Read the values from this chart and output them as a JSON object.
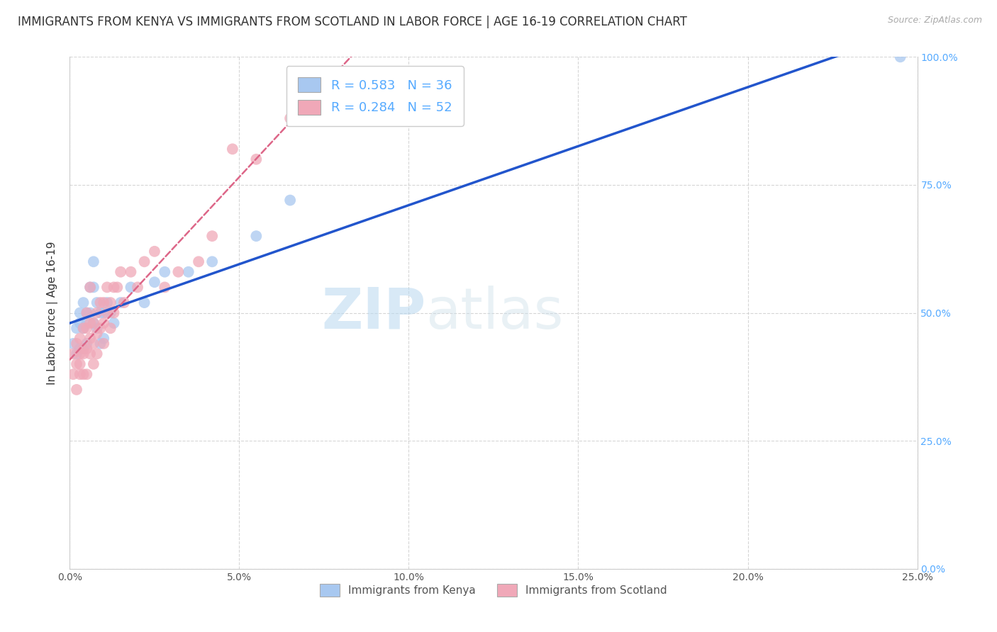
{
  "title": "IMMIGRANTS FROM KENYA VS IMMIGRANTS FROM SCOTLAND IN LABOR FORCE | AGE 16-19 CORRELATION CHART",
  "source": "Source: ZipAtlas.com",
  "ylabel": "In Labor Force | Age 16-19",
  "kenya_R": 0.583,
  "kenya_N": 36,
  "scotland_R": 0.284,
  "scotland_N": 52,
  "kenya_color": "#a8c8f0",
  "scotland_color": "#f0a8b8",
  "kenya_line_color": "#2255cc",
  "scotland_line_color": "#dd6688",
  "background_color": "#ffffff",
  "grid_color": "#cccccc",
  "xlim": [
    0.0,
    0.25
  ],
  "ylim": [
    0.0,
    1.0
  ],
  "xticks": [
    0.0,
    0.05,
    0.1,
    0.15,
    0.2,
    0.25
  ],
  "xticklabels": [
    "0.0%",
    "5.0%",
    "10.0%",
    "15.0%",
    "20.0%",
    "25.0%"
  ],
  "yticks_right": [
    0.0,
    0.25,
    0.5,
    0.75,
    1.0
  ],
  "yticklabels_right": [
    "0.0%",
    "25.0%",
    "50.0%",
    "75.0%",
    "100.0%"
  ],
  "kenya_x": [
    0.001,
    0.002,
    0.002,
    0.003,
    0.003,
    0.003,
    0.004,
    0.004,
    0.004,
    0.005,
    0.005,
    0.005,
    0.006,
    0.006,
    0.007,
    0.007,
    0.007,
    0.008,
    0.008,
    0.009,
    0.009,
    0.01,
    0.01,
    0.011,
    0.012,
    0.013,
    0.015,
    0.018,
    0.022,
    0.025,
    0.028,
    0.035,
    0.042,
    0.055,
    0.065,
    0.245
  ],
  "kenya_y": [
    0.44,
    0.47,
    0.42,
    0.5,
    0.48,
    0.43,
    0.52,
    0.47,
    0.43,
    0.5,
    0.48,
    0.44,
    0.55,
    0.5,
    0.6,
    0.55,
    0.48,
    0.52,
    0.47,
    0.5,
    0.44,
    0.5,
    0.45,
    0.52,
    0.5,
    0.48,
    0.52,
    0.55,
    0.52,
    0.56,
    0.58,
    0.58,
    0.6,
    0.65,
    0.72,
    1.0
  ],
  "scotland_x": [
    0.001,
    0.001,
    0.002,
    0.002,
    0.002,
    0.003,
    0.003,
    0.003,
    0.003,
    0.004,
    0.004,
    0.004,
    0.004,
    0.005,
    0.005,
    0.005,
    0.005,
    0.006,
    0.006,
    0.006,
    0.006,
    0.007,
    0.007,
    0.007,
    0.008,
    0.008,
    0.008,
    0.009,
    0.009,
    0.01,
    0.01,
    0.01,
    0.011,
    0.011,
    0.012,
    0.012,
    0.013,
    0.013,
    0.014,
    0.015,
    0.016,
    0.018,
    0.02,
    0.022,
    0.025,
    0.028,
    0.032,
    0.038,
    0.042,
    0.048,
    0.055,
    0.065
  ],
  "scotland_y": [
    0.38,
    0.42,
    0.4,
    0.35,
    0.44,
    0.42,
    0.38,
    0.45,
    0.4,
    0.47,
    0.43,
    0.38,
    0.42,
    0.47,
    0.43,
    0.38,
    0.5,
    0.48,
    0.45,
    0.42,
    0.55,
    0.48,
    0.44,
    0.4,
    0.5,
    0.46,
    0.42,
    0.52,
    0.47,
    0.52,
    0.48,
    0.44,
    0.55,
    0.5,
    0.52,
    0.47,
    0.55,
    0.5,
    0.55,
    0.58,
    0.52,
    0.58,
    0.55,
    0.6,
    0.62,
    0.55,
    0.58,
    0.6,
    0.65,
    0.82,
    0.8,
    0.88
  ],
  "title_fontsize": 12,
  "tick_fontsize": 10,
  "legend_fontsize": 13,
  "ylabel_fontsize": 11
}
